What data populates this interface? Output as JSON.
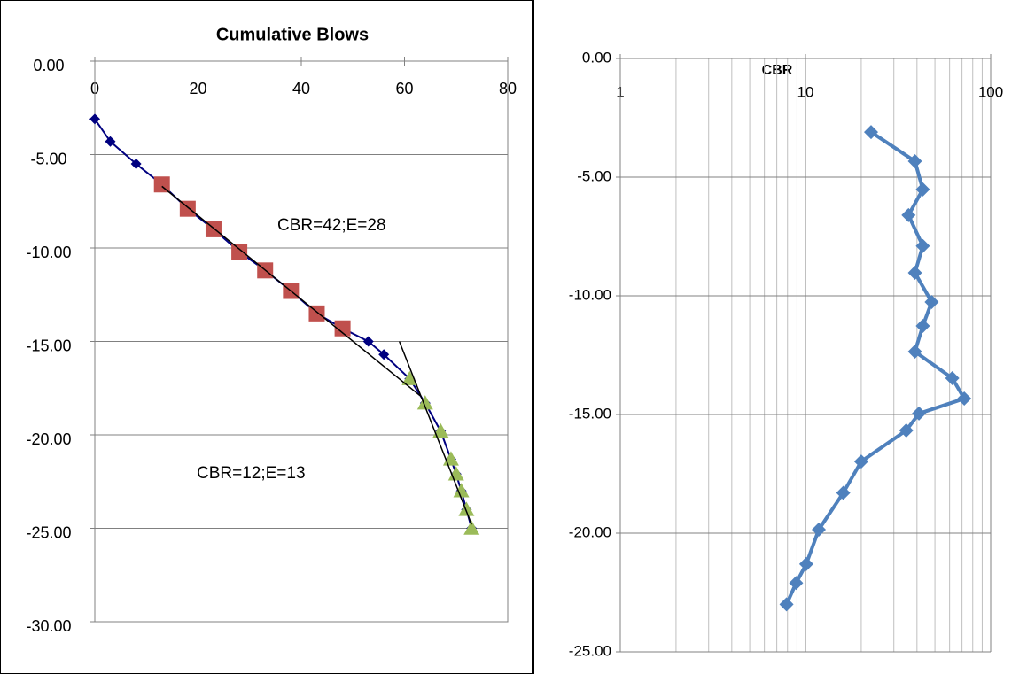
{
  "chart_data": [
    {
      "type": "scatter",
      "title": "Cumulative Blows",
      "xlim": [
        0,
        80
      ],
      "xticks": [
        0,
        20,
        40,
        60,
        80
      ],
      "ylim": [
        -30,
        0
      ],
      "yticks": [
        {
          "value": 0,
          "label": "0.00"
        },
        {
          "value": -5,
          "label": "-5.00"
        },
        {
          "value": -10,
          "label": "-10.00"
        },
        {
          "value": -15,
          "label": "-15.00"
        },
        {
          "value": -20,
          "label": "-20.00"
        },
        {
          "value": -25,
          "label": "-25.00"
        },
        {
          "value": -30,
          "label": "-30.00"
        }
      ],
      "grid": true,
      "series": [
        {
          "color": "#000080",
          "marker": "diamond",
          "line": true,
          "x": [
            0,
            3,
            8,
            13,
            18,
            23,
            28,
            33,
            38,
            43,
            48,
            53,
            56,
            61,
            64,
            67,
            69,
            70,
            71,
            72,
            73
          ],
          "values": [
            -3.1,
            -4.3,
            -5.5,
            -6.6,
            -7.9,
            -9.0,
            -10.2,
            -11.2,
            -12.3,
            -13.5,
            -14.3,
            -15.0,
            -15.7,
            -17.0,
            -18.3,
            -19.8,
            -21.3,
            -22.1,
            -23.0,
            -24.0,
            -25.0
          ]
        },
        {
          "color": "#c0504d",
          "marker": "square",
          "line": false,
          "x": [
            13,
            18,
            23,
            28,
            33,
            38,
            43,
            48
          ],
          "values": [
            -6.6,
            -7.9,
            -9.0,
            -10.2,
            -11.2,
            -12.3,
            -13.5,
            -14.3
          ]
        },
        {
          "color": "#9bbb59",
          "marker": "triangle",
          "line": false,
          "x": [
            61,
            64,
            67,
            69,
            70,
            71,
            72,
            73
          ],
          "values": [
            -17.0,
            -18.3,
            -19.8,
            -21.3,
            -22.1,
            -23.0,
            -24.0,
            -25.0
          ]
        }
      ],
      "trendlines": [
        {
          "color": "#000000",
          "x": [
            13,
            63
          ],
          "values": [
            -6.7,
            -17.9
          ]
        },
        {
          "color": "#000000",
          "x": [
            59,
            73
          ],
          "values": [
            -15.0,
            -24.8
          ]
        }
      ],
      "annotations": [
        "CBR=42;E=28",
        "CBR=12;E=13"
      ]
    },
    {
      "type": "line",
      "title": "CBR",
      "log_x": true,
      "xlim": [
        1,
        100
      ],
      "xticks": [
        1,
        10,
        100
      ],
      "xminor": [
        2,
        3,
        4,
        5,
        6,
        7,
        8,
        9,
        20,
        30,
        40,
        50,
        60,
        70,
        80,
        90
      ],
      "ylim": [
        -25,
        0
      ],
      "yticks": [
        {
          "value": 0,
          "label": "0.00"
        },
        {
          "value": -5,
          "label": "-5.00"
        },
        {
          "value": -10,
          "label": "-10.00"
        },
        {
          "value": -15,
          "label": "-15.00"
        },
        {
          "value": -20,
          "label": "-20.00"
        },
        {
          "value": -25,
          "label": "-25.00"
        }
      ],
      "grid": true,
      "series": [
        {
          "color": "#4f81bd",
          "marker": "diamond",
          "line": true,
          "x": [
            22.6,
            39,
            43,
            36,
            43,
            39,
            48,
            43,
            39,
            62,
            72,
            41,
            35,
            20,
            16,
            11.8,
            10.1,
            8.9,
            7.9
          ],
          "values": [
            -3.1,
            -4.33,
            -5.52,
            -6.6,
            -7.9,
            -9.03,
            -10.26,
            -11.27,
            -12.35,
            -13.47,
            -14.33,
            -14.96,
            -15.67,
            -16.98,
            -18.3,
            -19.85,
            -21.3,
            -22.1,
            -23.0
          ]
        }
      ]
    }
  ]
}
